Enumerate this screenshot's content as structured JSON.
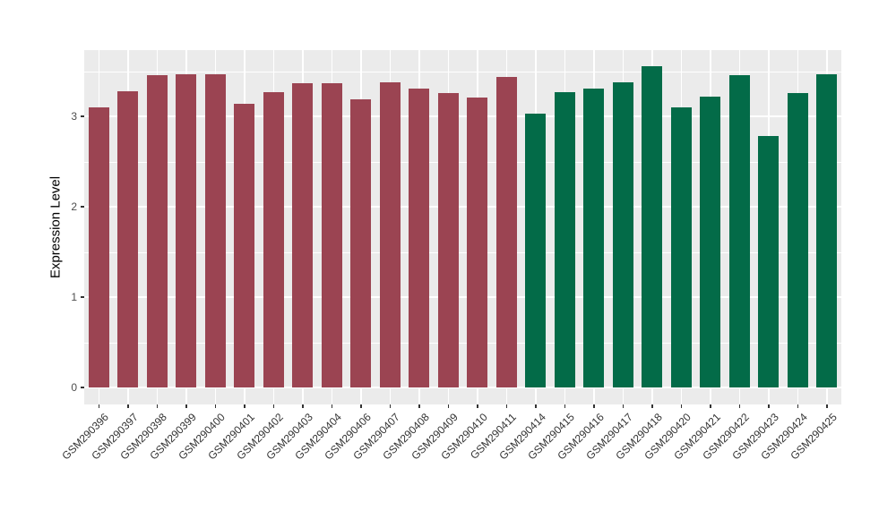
{
  "chart_data": {
    "type": "bar",
    "title": "",
    "xlabel": "",
    "ylabel": "Expression Level",
    "y_ticks": [
      0,
      1,
      2,
      3
    ],
    "y_minor_ticks": [
      0.5,
      1.5,
      2.5,
      3.5
    ],
    "ylim": [
      0,
      3.73
    ],
    "legend": "none",
    "grid": "on",
    "panel_bg": "#EBEBEB",
    "grid_color": "#FFFFFF",
    "axis_text_color": "#4D4D4D",
    "x_label_angle_deg": 45,
    "colors": {
      "maroon": "#9B4452",
      "green": "#036B48"
    },
    "bars": [
      {
        "label": "GSM290396",
        "value": 3.1,
        "group": "maroon"
      },
      {
        "label": "GSM290397",
        "value": 3.28,
        "group": "maroon"
      },
      {
        "label": "GSM290398",
        "value": 3.46,
        "group": "maroon"
      },
      {
        "label": "GSM290399",
        "value": 3.47,
        "group": "maroon"
      },
      {
        "label": "GSM290400",
        "value": 3.47,
        "group": "maroon"
      },
      {
        "label": "GSM290401",
        "value": 3.14,
        "group": "maroon"
      },
      {
        "label": "GSM290402",
        "value": 3.27,
        "group": "maroon"
      },
      {
        "label": "GSM290403",
        "value": 3.37,
        "group": "maroon"
      },
      {
        "label": "GSM290404",
        "value": 3.37,
        "group": "maroon"
      },
      {
        "label": "GSM290406",
        "value": 3.19,
        "group": "maroon"
      },
      {
        "label": "GSM290407",
        "value": 3.38,
        "group": "maroon"
      },
      {
        "label": "GSM290408",
        "value": 3.31,
        "group": "maroon"
      },
      {
        "label": "GSM290409",
        "value": 3.26,
        "group": "maroon"
      },
      {
        "label": "GSM290410",
        "value": 3.21,
        "group": "maroon"
      },
      {
        "label": "GSM290411",
        "value": 3.44,
        "group": "maroon"
      },
      {
        "label": "GSM290414",
        "value": 3.03,
        "group": "green"
      },
      {
        "label": "GSM290415",
        "value": 3.27,
        "group": "green"
      },
      {
        "label": "GSM290416",
        "value": 3.31,
        "group": "green"
      },
      {
        "label": "GSM290417",
        "value": 3.38,
        "group": "green"
      },
      {
        "label": "GSM290418",
        "value": 3.55,
        "group": "green"
      },
      {
        "label": "GSM290420",
        "value": 3.1,
        "group": "green"
      },
      {
        "label": "GSM290421",
        "value": 3.22,
        "group": "green"
      },
      {
        "label": "GSM290422",
        "value": 3.46,
        "group": "green"
      },
      {
        "label": "GSM290423",
        "value": 2.78,
        "group": "green"
      },
      {
        "label": "GSM290424",
        "value": 3.26,
        "group": "green"
      },
      {
        "label": "GSM290425",
        "value": 3.47,
        "group": "green"
      }
    ]
  }
}
